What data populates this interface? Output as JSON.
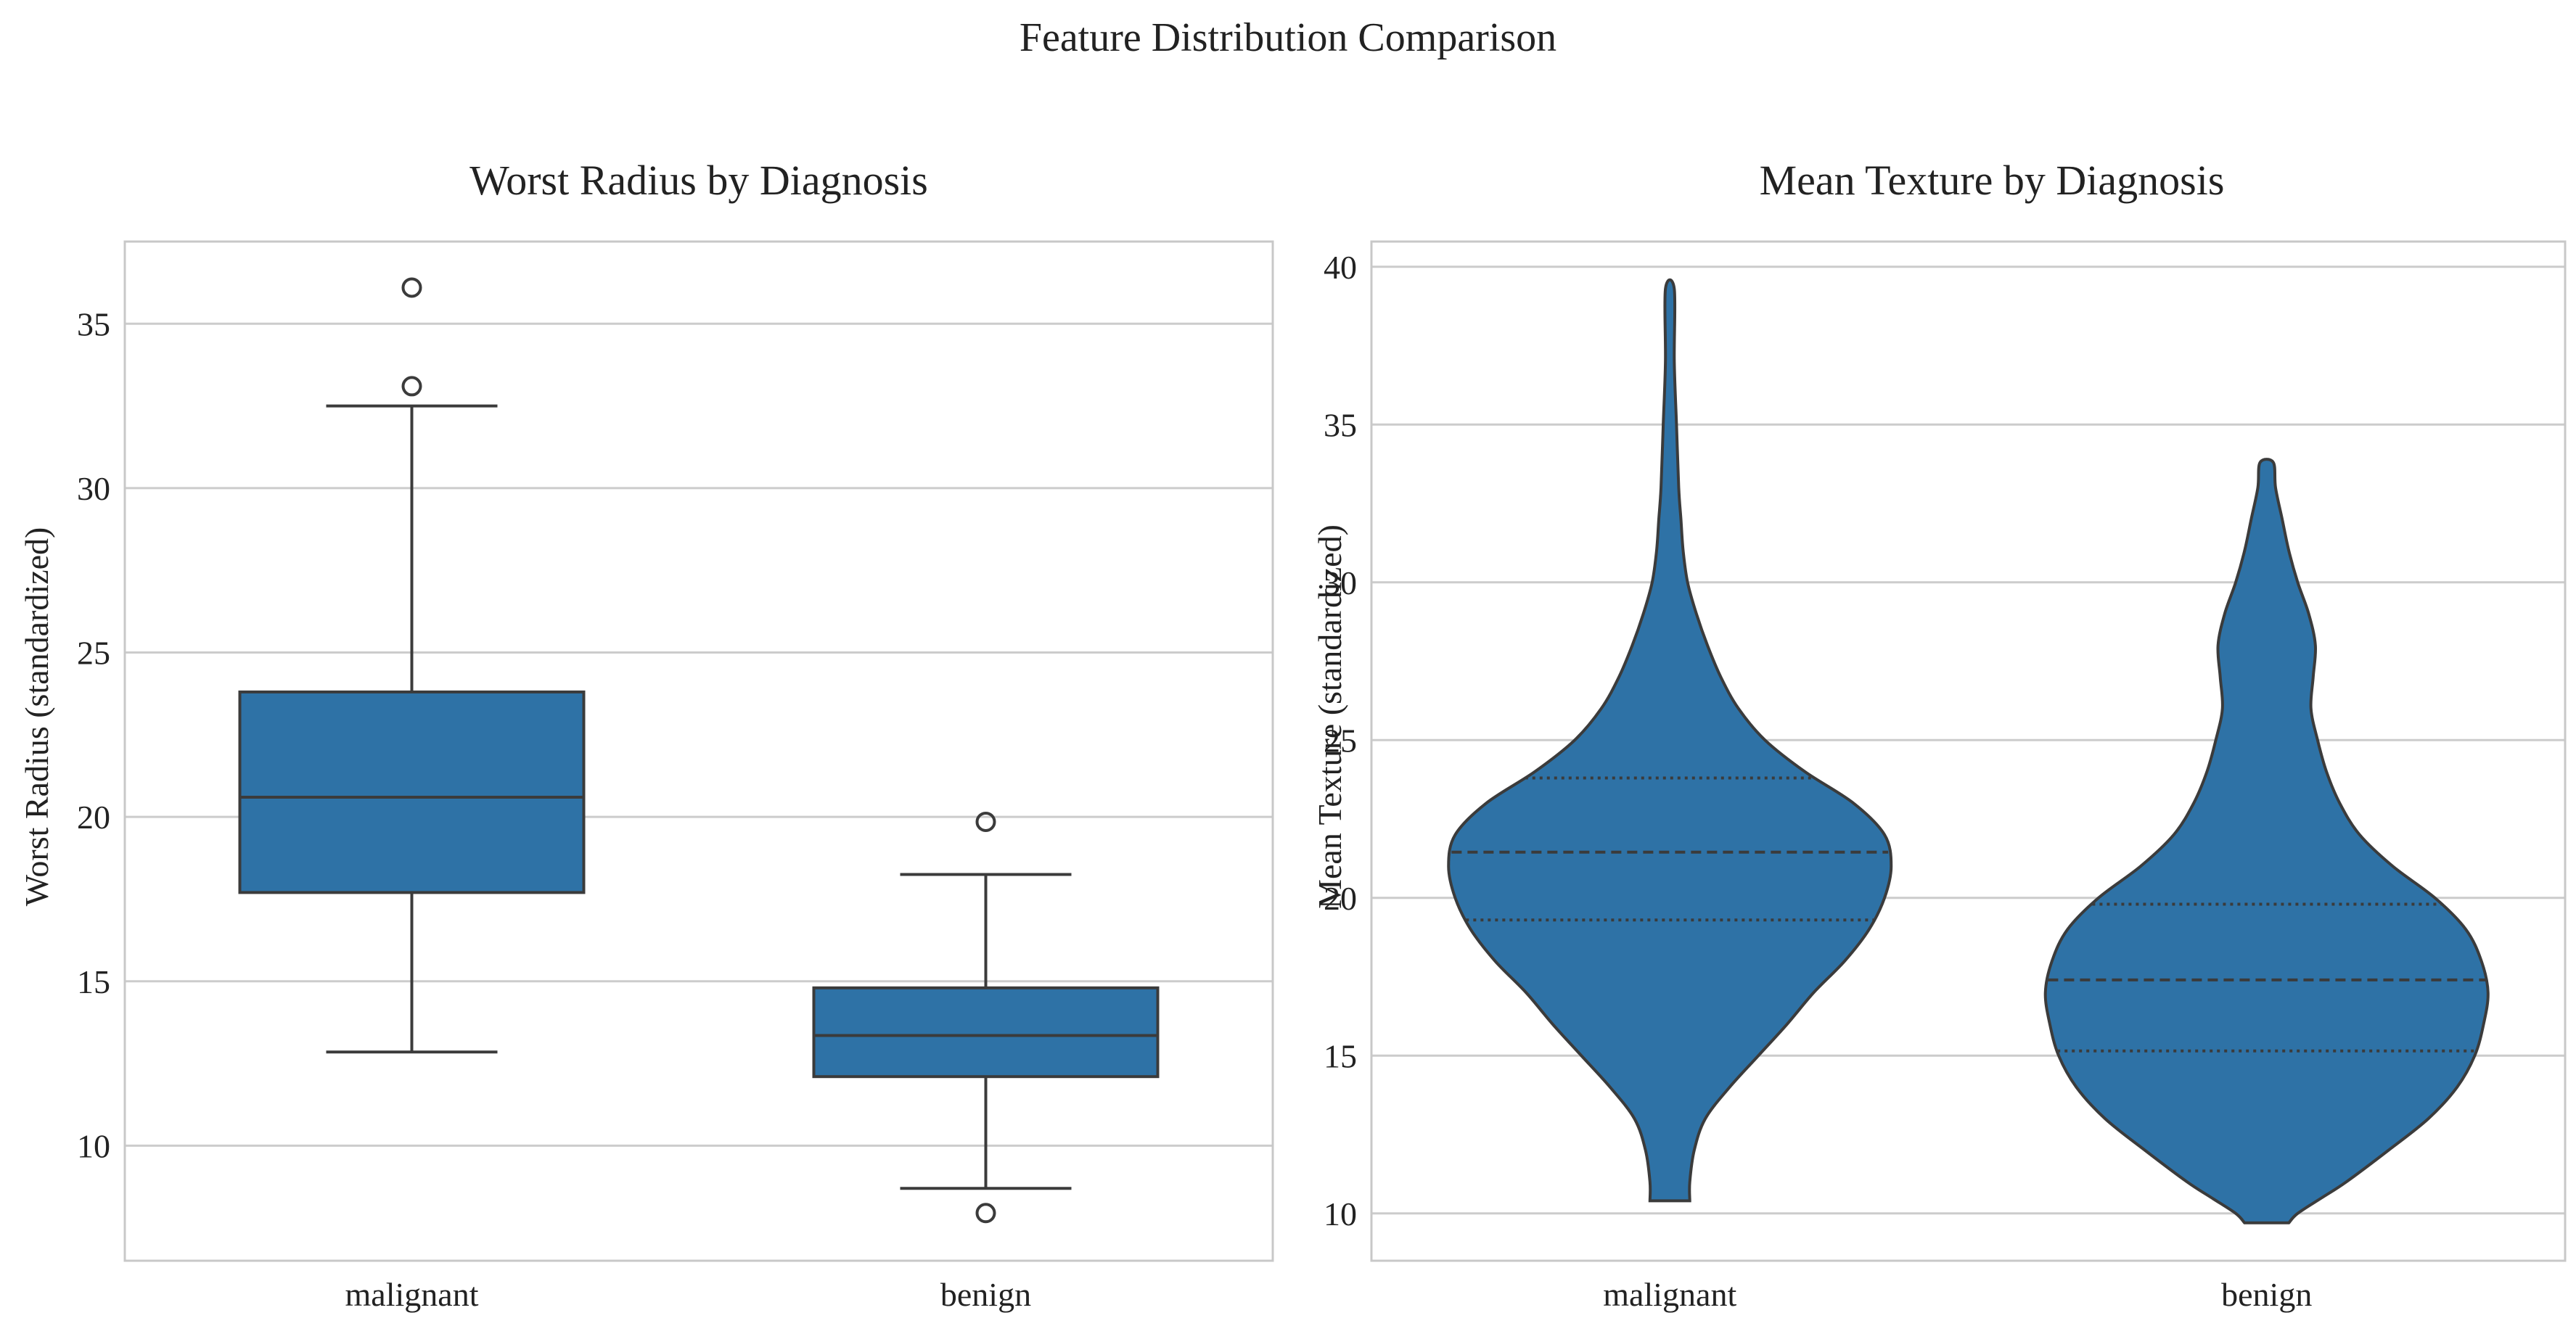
{
  "figure": {
    "title": "Feature Distribution Comparison"
  },
  "chart_data": [
    {
      "type": "box",
      "title": "Worst Radius by Diagnosis",
      "xlabel": "",
      "ylabel": "Worst Radius (standardized)",
      "categories": [
        "malignant",
        "benign"
      ],
      "ylim": [
        6.5,
        37.5
      ],
      "yticks": [
        10,
        15,
        20,
        25,
        30,
        35
      ],
      "grid": true,
      "color": "#2e72a6",
      "boxes": [
        {
          "category": "malignant",
          "whisker_low": 12.85,
          "q1": 17.7,
          "median": 20.6,
          "q3": 23.8,
          "whisker_high": 32.5,
          "outliers": [
            36.1,
            33.1
          ]
        },
        {
          "category": "benign",
          "whisker_low": 8.7,
          "q1": 12.1,
          "median": 13.35,
          "q3": 14.8,
          "whisker_high": 18.25,
          "outliers": [
            19.85,
            7.95
          ]
        }
      ]
    },
    {
      "type": "violin",
      "title": "Mean Texture by Diagnosis",
      "xlabel": "",
      "ylabel": "Mean Texture (standardized)",
      "categories": [
        "malignant",
        "benign"
      ],
      "ylim": [
        8.5,
        40.8
      ],
      "yticks": [
        10,
        15,
        20,
        25,
        30,
        35,
        40
      ],
      "grid": true,
      "color": "#2e72a6",
      "violins": [
        {
          "category": "malignant",
          "min": 10.4,
          "max": 39.3,
          "q1": 19.3,
          "median": 21.45,
          "q3": 23.8,
          "density": [
            [
              10.4,
              0.09
            ],
            [
              11.0,
              0.09
            ],
            [
              12.0,
              0.11
            ],
            [
              13.0,
              0.16
            ],
            [
              14.0,
              0.27
            ],
            [
              15.0,
              0.4
            ],
            [
              16.0,
              0.53
            ],
            [
              17.0,
              0.65
            ],
            [
              18.0,
              0.79
            ],
            [
              19.0,
              0.9
            ],
            [
              20.0,
              0.97
            ],
            [
              21.0,
              1.0
            ],
            [
              22.0,
              0.97
            ],
            [
              23.0,
              0.83
            ],
            [
              24.0,
              0.61
            ],
            [
              25.0,
              0.43
            ],
            [
              26.0,
              0.31
            ],
            [
              27.0,
              0.23
            ],
            [
              28.0,
              0.17
            ],
            [
              29.0,
              0.12
            ],
            [
              30.0,
              0.08
            ],
            [
              31.0,
              0.06
            ],
            [
              32.0,
              0.05
            ],
            [
              33.0,
              0.04
            ],
            [
              35.0,
              0.03
            ],
            [
              37.0,
              0.02
            ],
            [
              39.3,
              0.02
            ]
          ]
        },
        {
          "category": "benign",
          "min": 9.7,
          "max": 33.8,
          "q1": 15.15,
          "median": 17.4,
          "q3": 19.8,
          "density": [
            [
              9.7,
              0.1
            ],
            [
              10.0,
              0.14
            ],
            [
              10.5,
              0.25
            ],
            [
              11.0,
              0.36
            ],
            [
              12.0,
              0.55
            ],
            [
              13.0,
              0.73
            ],
            [
              14.0,
              0.86
            ],
            [
              15.0,
              0.94
            ],
            [
              16.0,
              0.98
            ],
            [
              17.0,
              1.0
            ],
            [
              18.0,
              0.97
            ],
            [
              19.0,
              0.9
            ],
            [
              20.0,
              0.76
            ],
            [
              21.0,
              0.57
            ],
            [
              22.0,
              0.42
            ],
            [
              23.0,
              0.33
            ],
            [
              24.0,
              0.27
            ],
            [
              25.0,
              0.23
            ],
            [
              26.0,
              0.2
            ],
            [
              27.0,
              0.21
            ],
            [
              28.0,
              0.22
            ],
            [
              29.0,
              0.19
            ],
            [
              30.0,
              0.14
            ],
            [
              31.0,
              0.1
            ],
            [
              32.0,
              0.07
            ],
            [
              33.0,
              0.04
            ],
            [
              33.8,
              0.03
            ]
          ]
        }
      ]
    }
  ]
}
